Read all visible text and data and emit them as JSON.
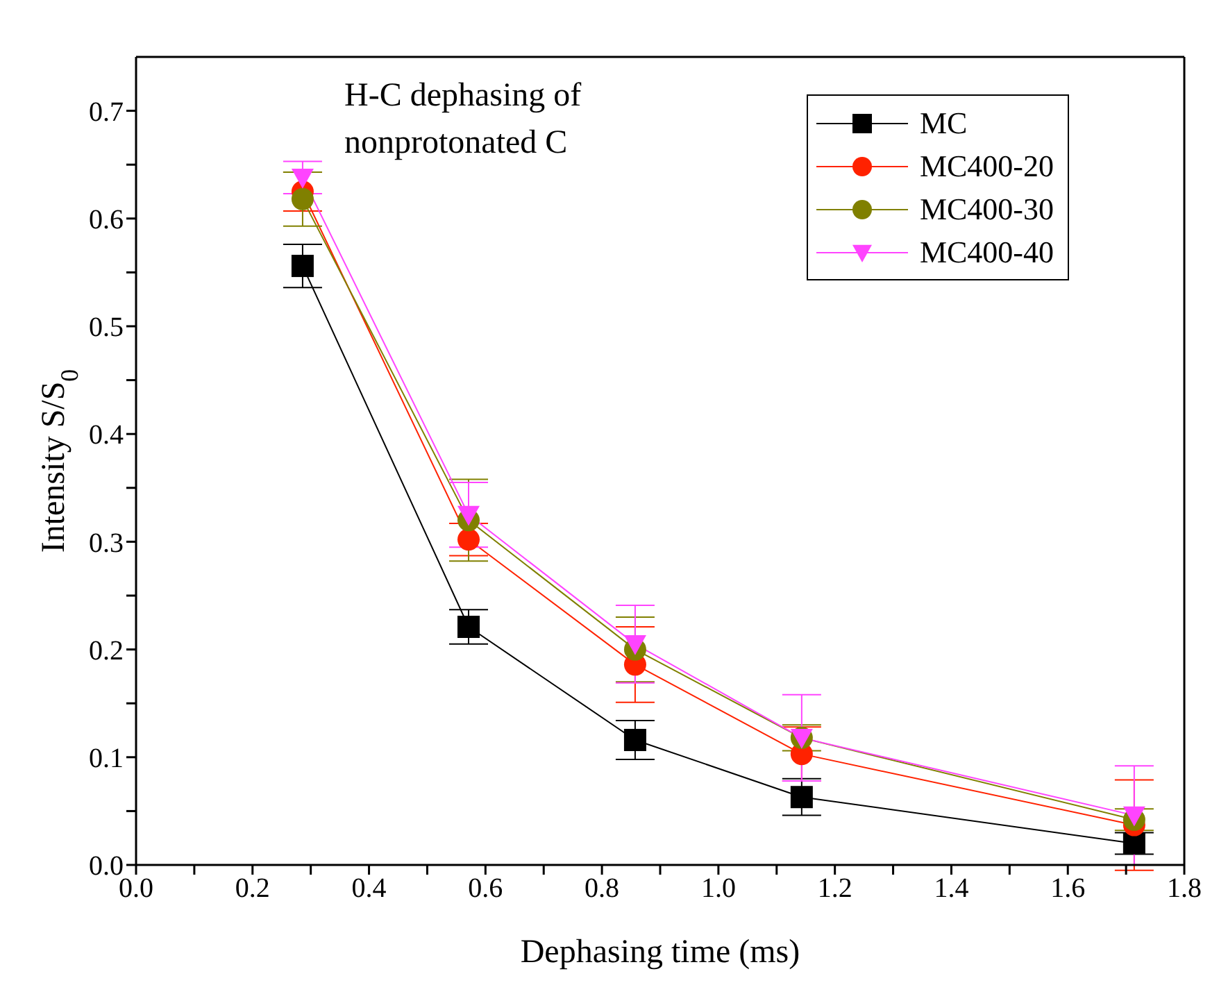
{
  "chart_data": {
    "type": "line",
    "title": "H-C dephasing of\nnonprotonated C",
    "xlabel": "Dephasing time (ms)",
    "ylabel": "Intensity S/S$_{0}$",
    "x": [
      0.286,
      0.571,
      0.857,
      1.143,
      1.714
    ],
    "series": [
      {
        "name": "MC",
        "color": "#000000",
        "marker": "square",
        "values": [
          0.556,
          0.221,
          0.116,
          0.063,
          0.02
        ],
        "errors": [
          0.02,
          0.016,
          0.018,
          0.017,
          0.01
        ]
      },
      {
        "name": "MC400-20",
        "color": "#ff2200",
        "marker": "circle",
        "values": [
          0.625,
          0.302,
          0.186,
          0.103,
          0.037
        ],
        "errors": [
          0.018,
          0.015,
          0.035,
          0.025,
          0.042
        ]
      },
      {
        "name": "MC400-30",
        "color": "#808000",
        "marker": "circle",
        "values": [
          0.618,
          0.32,
          0.2,
          0.118,
          0.042
        ],
        "errors": [
          0.025,
          0.038,
          0.03,
          0.012,
          0.01
        ]
      },
      {
        "name": "MC400-40",
        "color": "#ff44ff",
        "marker": "triangle",
        "values": [
          0.638,
          0.325,
          0.205,
          0.118,
          0.046
        ],
        "errors": [
          0.015,
          0.03,
          0.036,
          0.04,
          0.046
        ]
      }
    ],
    "xlim": [
      0,
      1.8
    ],
    "ylim": [
      0,
      0.75
    ],
    "xticks": [
      {
        "value": 0,
        "label": "0.0"
      },
      {
        "value": 0.1,
        "label": null
      },
      {
        "value": 0.2,
        "label": "0.2"
      },
      {
        "value": 0.3,
        "label": null
      },
      {
        "value": 0.4,
        "label": "0.4"
      },
      {
        "value": 0.5,
        "label": null
      },
      {
        "value": 0.6,
        "label": "0.6"
      },
      {
        "value": 0.7,
        "label": null
      },
      {
        "value": 0.8,
        "label": "0.8"
      },
      {
        "value": 0.9,
        "label": null
      },
      {
        "value": 1,
        "label": "1.0"
      },
      {
        "value": 1.1,
        "label": null
      },
      {
        "value": 1.2,
        "label": "1.2"
      },
      {
        "value": 1.3,
        "label": null
      },
      {
        "value": 1.4,
        "label": "1.4"
      },
      {
        "value": 1.5,
        "label": null
      },
      {
        "value": 1.6,
        "label": "1.6"
      },
      {
        "value": 1.7,
        "label": null
      },
      {
        "value": 1.8,
        "label": "1.8"
      }
    ],
    "yticks": [
      {
        "value": 0,
        "label": "0.0"
      },
      {
        "value": 0.05,
        "label": null
      },
      {
        "value": 0.1,
        "label": "0.1"
      },
      {
        "value": 0.15,
        "label": null
      },
      {
        "value": 0.2,
        "label": "0.2"
      },
      {
        "value": 0.25,
        "label": null
      },
      {
        "value": 0.3,
        "label": "0.3"
      },
      {
        "value": 0.35,
        "label": null
      },
      {
        "value": 0.4,
        "label": "0.4"
      },
      {
        "value": 0.45,
        "label": null
      },
      {
        "value": 0.5,
        "label": "0.5"
      },
      {
        "value": 0.55,
        "label": null
      },
      {
        "value": 0.6,
        "label": "0.6"
      },
      {
        "value": 0.65,
        "label": null
      },
      {
        "value": 0.7,
        "label": "0.7"
      }
    ],
    "grid": false,
    "legend": "top right",
    "line_style": "solid"
  }
}
